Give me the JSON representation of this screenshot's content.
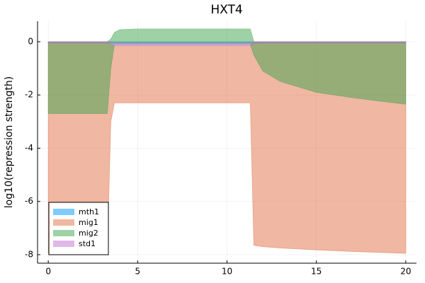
{
  "chart_data": {
    "type": "band",
    "title": "HXT4",
    "y_label": "log10(repression strength)",
    "x": [
      0,
      3.3,
      3.5,
      3.7,
      4,
      5,
      11.3,
      11.5,
      12,
      13,
      15,
      17,
      20
    ],
    "series": [
      {
        "name": "mth1",
        "color": "#009af9",
        "lower": [
          -0.05,
          -0.05,
          -0.05,
          -0.05,
          -0.05,
          -0.05,
          -0.05,
          -0.05,
          -0.05,
          -0.05,
          -0.05,
          -0.05,
          -0.05
        ],
        "upper": [
          0,
          0,
          0,
          0,
          0,
          0,
          0,
          0,
          0,
          0,
          0,
          0,
          0
        ]
      },
      {
        "name": "mig1",
        "color": "#e26f46",
        "lower": [
          -7.95,
          -7.95,
          -3,
          -2.3,
          -2.3,
          -2.3,
          -2.3,
          -7.65,
          -7.7,
          -7.75,
          -7.82,
          -7.88,
          -7.95
        ],
        "upper": [
          0,
          0,
          -0.1,
          -0.15,
          -0.15,
          -0.15,
          -0.15,
          0,
          0,
          0,
          0,
          0,
          0
        ]
      },
      {
        "name": "mig2",
        "color": "#3da44d",
        "lower": [
          -2.7,
          -2.7,
          -1,
          -0.1,
          -0.1,
          -0.1,
          -0.1,
          -0.5,
          -1.1,
          -1.5,
          -1.9,
          -2.1,
          -2.35
        ],
        "upper": [
          0,
          0,
          0.1,
          0.35,
          0.45,
          0.48,
          0.48,
          0,
          0,
          0,
          0,
          0,
          0
        ]
      },
      {
        "name": "std1",
        "color": "#c271d2",
        "lower": [
          -0.05,
          -0.05,
          -0.1,
          -0.15,
          -0.15,
          -0.15,
          -0.15,
          -0.08,
          -0.05,
          -0.05,
          -0.05,
          -0.05,
          -0.05
        ],
        "upper": [
          0,
          0,
          -0.03,
          -0.05,
          -0.05,
          -0.05,
          -0.05,
          0,
          0,
          0,
          0,
          0,
          0
        ]
      }
    ],
    "xlim": [
      -0.6,
      20.6
    ],
    "ylim": [
      -8.32,
      0.77
    ],
    "xticks": [
      0,
      5,
      10,
      15,
      20
    ],
    "yticks": [
      0,
      -2,
      -4,
      -6,
      -8
    ],
    "grid": true,
    "legend": "bottom-left",
    "opacity": 0.5
  }
}
